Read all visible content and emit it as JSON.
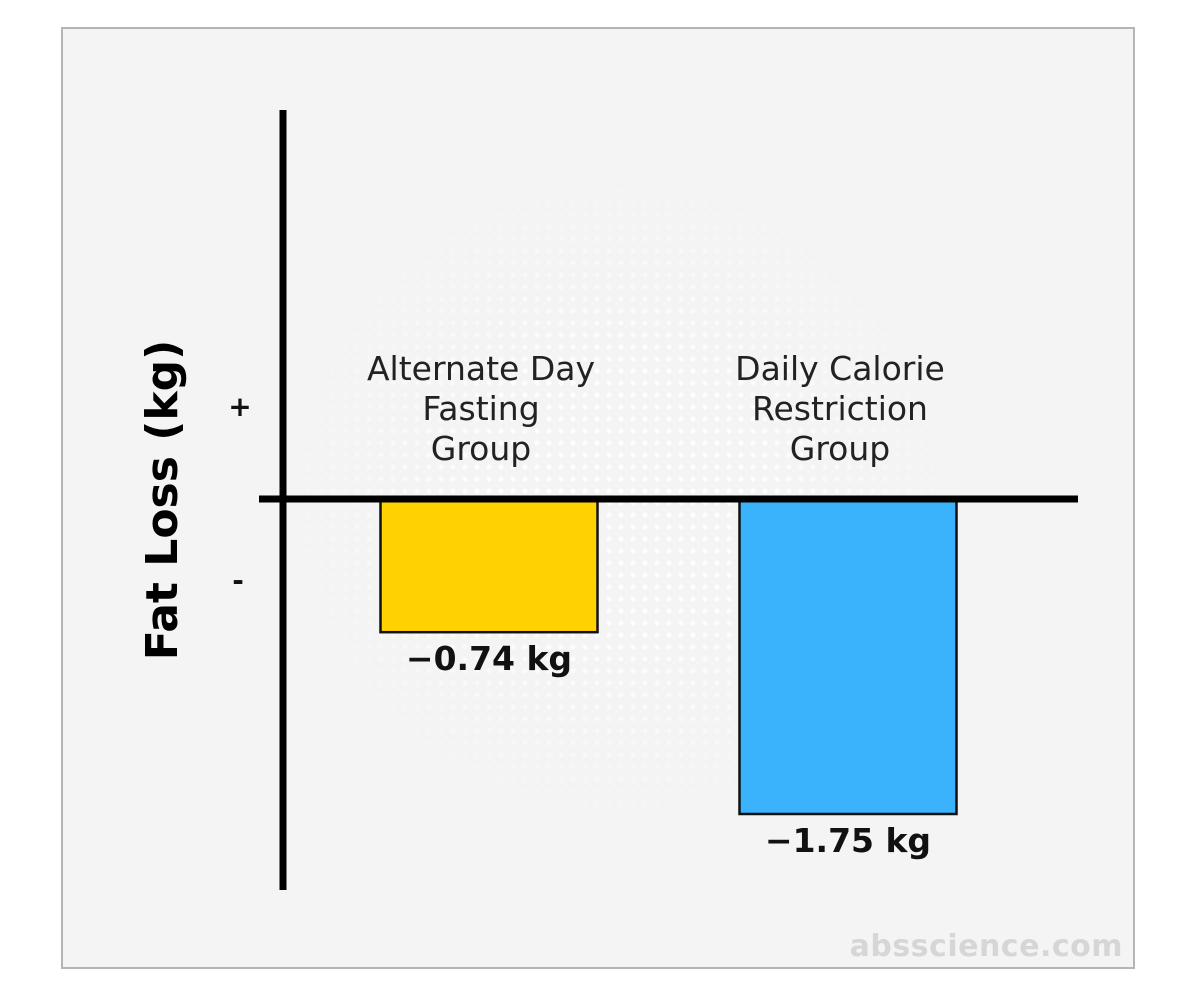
{
  "chart_data": {
    "type": "bar",
    "title": "",
    "xlabel": "",
    "ylabel": "Fat Loss (kg)",
    "positive_label": "+",
    "negative_label": "-",
    "categories": [
      "Alternate Day Fasting Group",
      "Daily Calorie Restriction Group"
    ],
    "category_lines": [
      [
        "Alternate Day",
        "Fasting",
        "Group"
      ],
      [
        "Daily Calorie",
        "Restriction",
        "Group"
      ]
    ],
    "values": [
      -0.74,
      -1.75
    ],
    "value_labels": [
      "−0.74 kg",
      "−1.75 kg"
    ],
    "colors": [
      "#FFD200",
      "#3BB2FC"
    ],
    "ylim": [
      -2.2,
      2.2
    ],
    "grid": false,
    "legend": "none"
  },
  "watermark": "absscience.com"
}
